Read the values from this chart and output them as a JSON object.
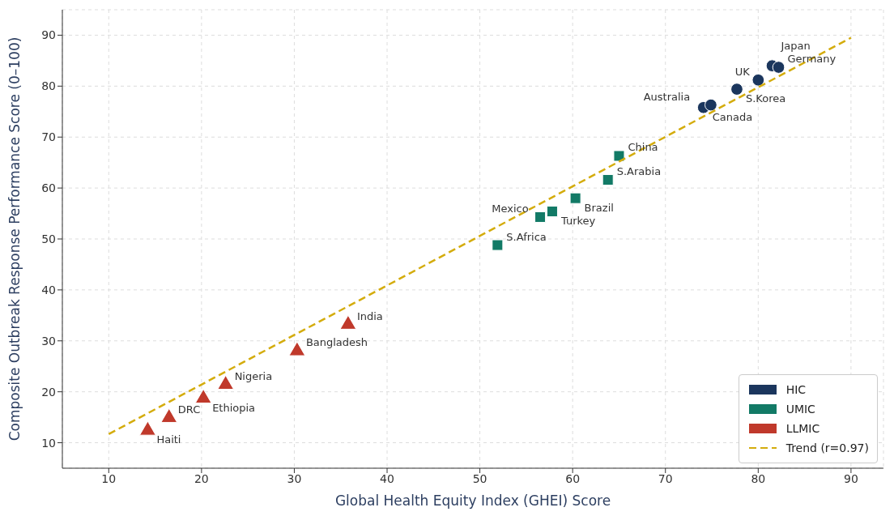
{
  "chart_data": {
    "type": "scatter",
    "xlabel": "Global Health Equity Index (GHEI) Score",
    "ylabel": "Composite Outbreak Response Performance Score (0–100)",
    "series": [
      {
        "name": "HIC",
        "color": "#1b365d",
        "marker": "circle",
        "x": [
          74.1,
          74.9,
          77.7,
          80.0,
          81.5,
          82.2
        ],
        "values": [
          75.8,
          76.3,
          79.4,
          81.2,
          84.0,
          83.7
        ]
      },
      {
        "name": "UMIC",
        "color": "#127a66",
        "marker": "square",
        "x": [
          65.0,
          63.8,
          60.3,
          57.8,
          56.5,
          51.9
        ],
        "values": [
          66.3,
          61.6,
          58.0,
          55.4,
          54.3,
          48.8
        ]
      },
      {
        "name": "LLMIC",
        "color": "#c0392b",
        "marker": "triangle",
        "x": [
          35.8,
          30.3,
          22.6,
          20.2,
          16.5,
          14.2
        ],
        "values": [
          33.2,
          28.0,
          21.4,
          18.7,
          14.9,
          12.4
        ]
      },
      {
        "name": "Trend (r=0.97)",
        "type": "line",
        "color": "#d4ac0d",
        "line_style": "dashed",
        "marker": "none",
        "x": [
          10,
          90
        ],
        "values": [
          11.7,
          89.5
        ]
      }
    ],
    "annotations": [
      {
        "text": "Canada",
        "x": 74.1,
        "y": 75.8
      },
      {
        "text": "Australia",
        "x": 74.9,
        "y": 76.3
      },
      {
        "text": "S.Korea",
        "x": 77.7,
        "y": 79.4
      },
      {
        "text": "UK",
        "x": 80.0,
        "y": 81.2
      },
      {
        "text": "Japan",
        "x": 81.5,
        "y": 84.0
      },
      {
        "text": "Germany",
        "x": 82.2,
        "y": 83.7
      },
      {
        "text": "China",
        "x": 65.0,
        "y": 66.3
      },
      {
        "text": "S.Arabia",
        "x": 63.8,
        "y": 61.6
      },
      {
        "text": "Brazil",
        "x": 60.3,
        "y": 58.0
      },
      {
        "text": "Turkey",
        "x": 57.8,
        "y": 55.4
      },
      {
        "text": "Mexico",
        "x": 56.5,
        "y": 54.3
      },
      {
        "text": "S.Africa",
        "x": 51.9,
        "y": 48.8
      },
      {
        "text": "India",
        "x": 35.8,
        "y": 33.2
      },
      {
        "text": "Bangladesh",
        "x": 30.3,
        "y": 28.0
      },
      {
        "text": "Nigeria",
        "x": 22.6,
        "y": 21.4
      },
      {
        "text": "Ethiopia",
        "x": 20.2,
        "y": 18.7
      },
      {
        "text": "DRC",
        "x": 16.5,
        "y": 14.9
      },
      {
        "text": "Haiti",
        "x": 14.2,
        "y": 12.4
      }
    ],
    "xlim": [
      5,
      93.5
    ],
    "xticks": [
      10,
      20,
      30,
      40,
      50,
      60,
      70,
      80,
      90
    ],
    "ylim": [
      5,
      95
    ],
    "yticks": [
      10,
      20,
      30,
      40,
      50,
      60,
      70,
      80,
      90
    ],
    "grid": true,
    "legend": "bottom right"
  }
}
